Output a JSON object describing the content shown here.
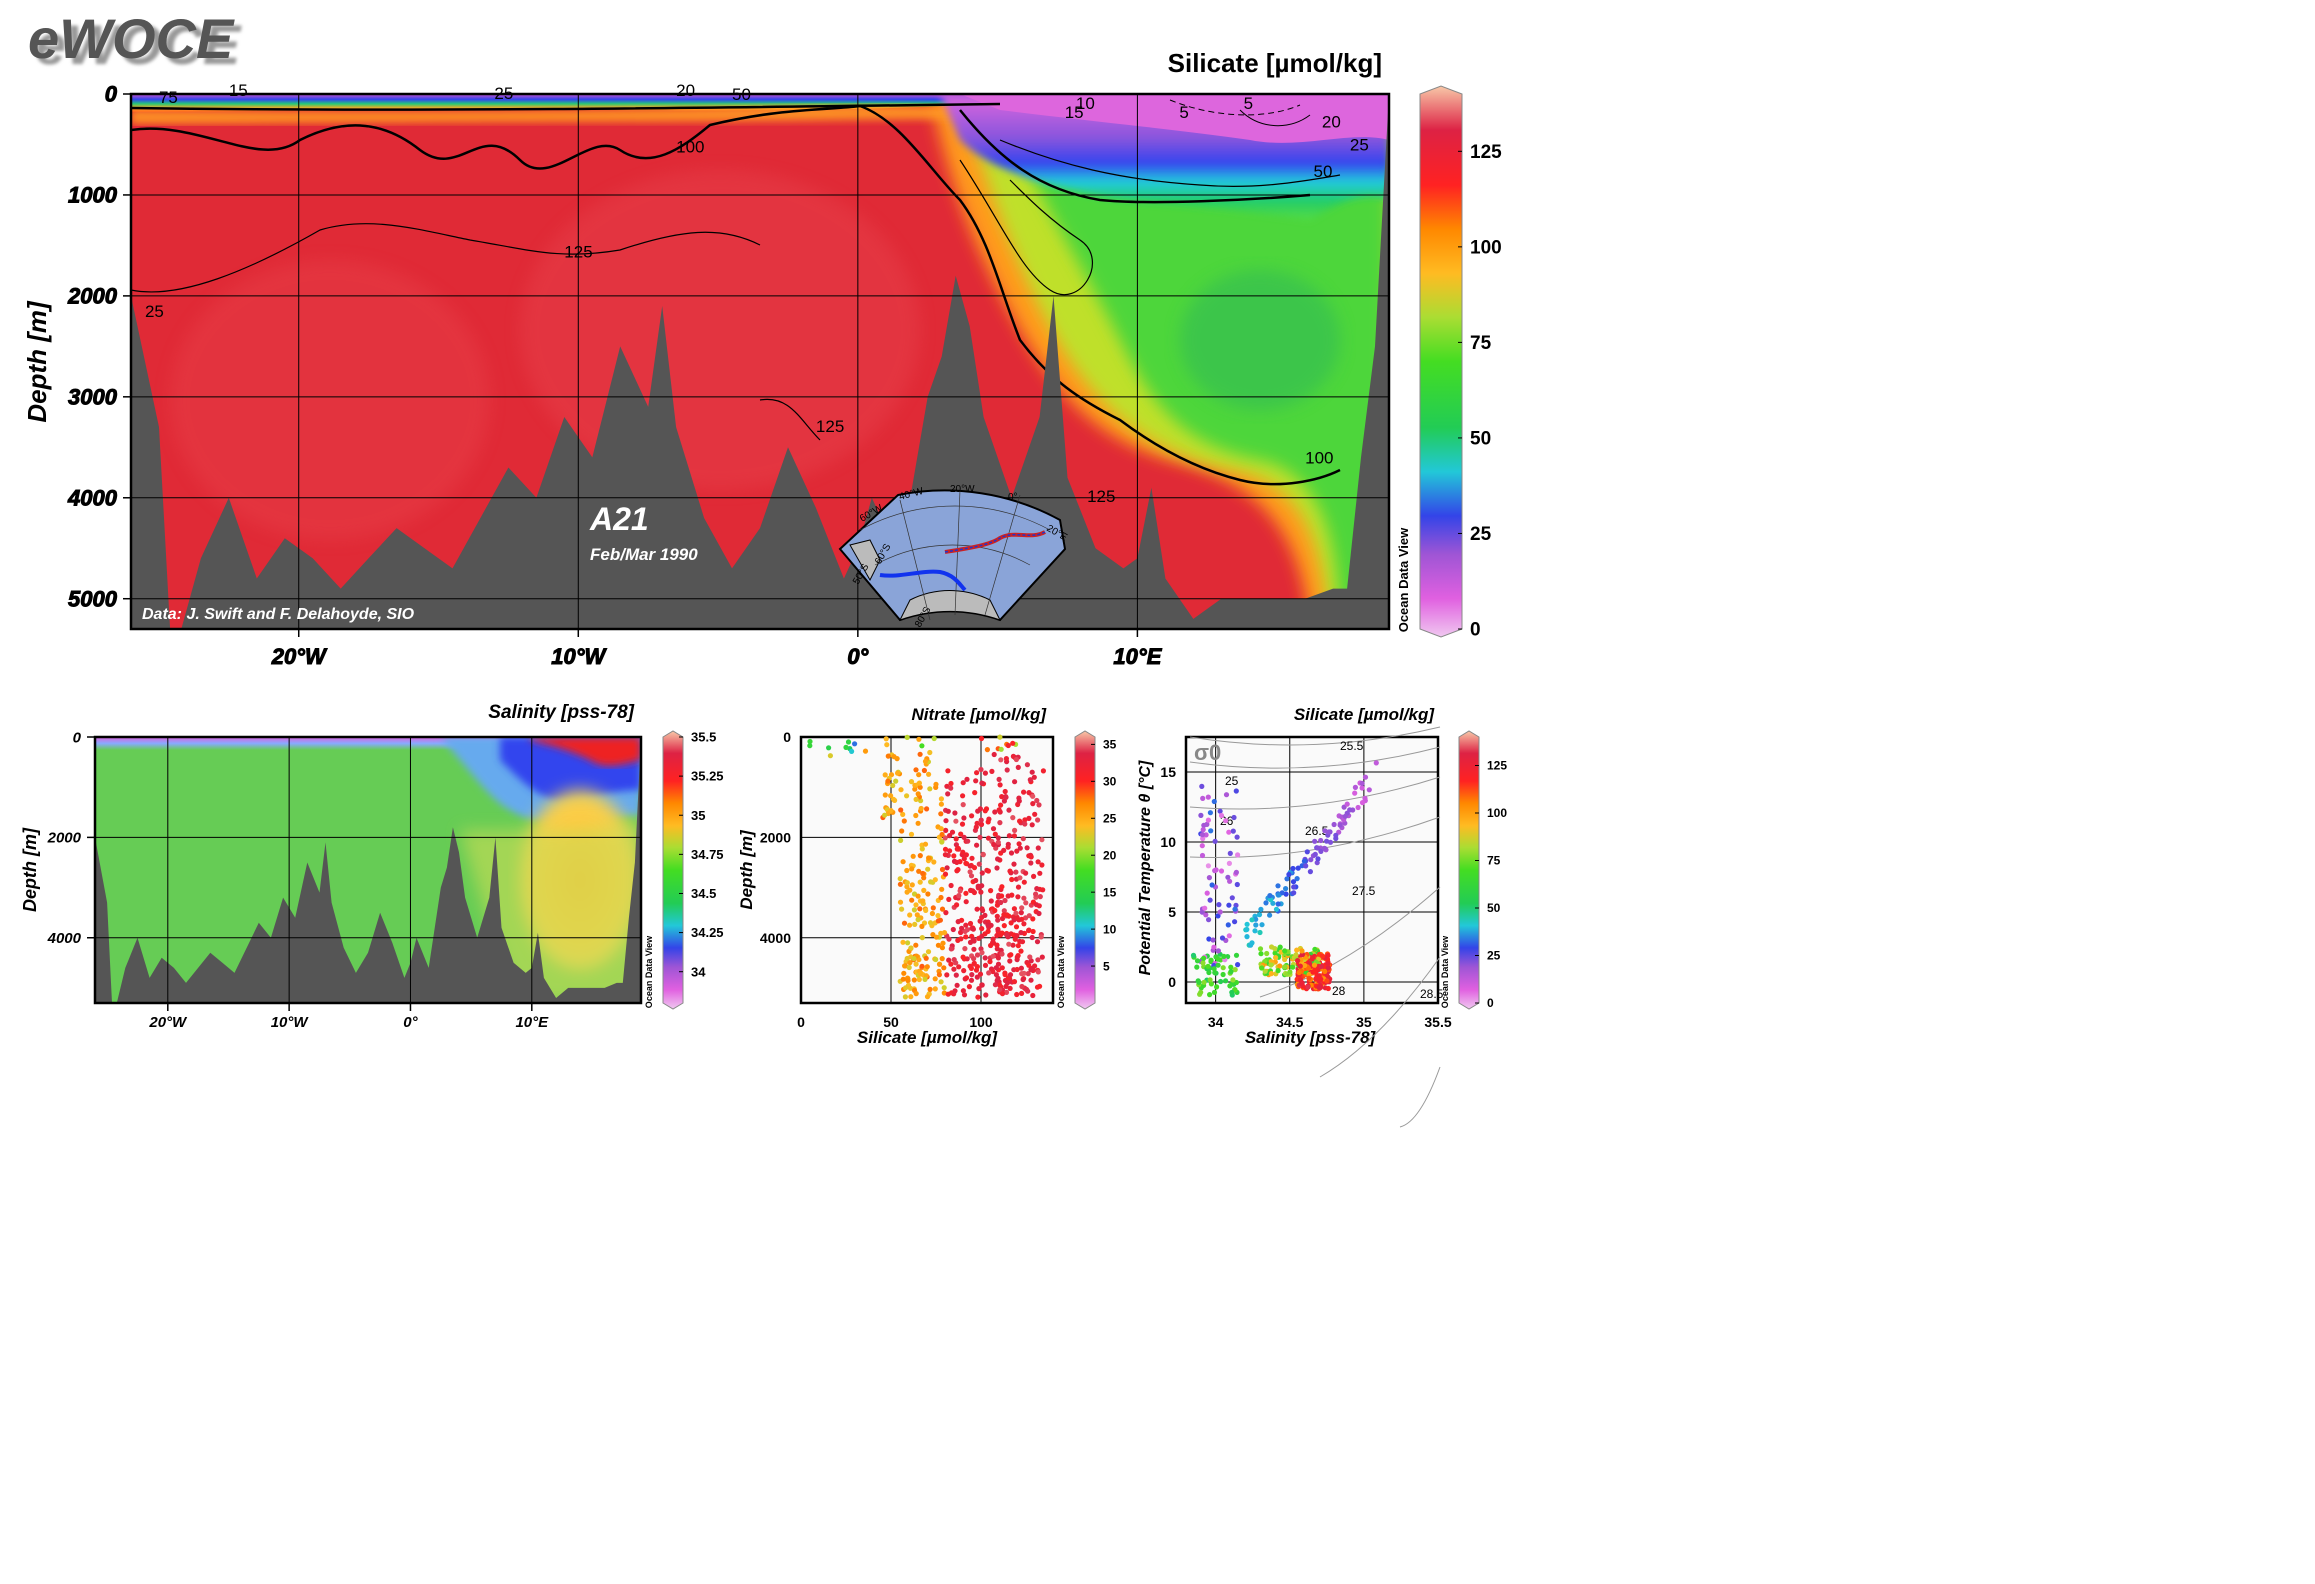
{
  "brand": {
    "logo": "eWOCE"
  },
  "chart_data": [
    {
      "type": "heatmap",
      "title": "Silicate [µmol/kg]",
      "ylabel": "Depth [m]",
      "xlabel": "",
      "xlim": [
        -26,
        19
      ],
      "ylim": [
        5300,
        0
      ],
      "x_ticks": [
        {
          "v": -20,
          "label": "20°W"
        },
        {
          "v": -10,
          "label": "10°W"
        },
        {
          "v": 0,
          "label": "0°"
        },
        {
          "v": 10,
          "label": "10°E"
        }
      ],
      "y_ticks": [
        0,
        1000,
        2000,
        3000,
        4000,
        5000
      ],
      "colorbar": {
        "min": 0,
        "max": 140,
        "ticks": [
          0,
          25,
          50,
          75,
          100,
          125
        ],
        "credit": "Ocean Data View"
      },
      "contour_labels": [
        {
          "x": -25,
          "y": 90,
          "text": "75"
        },
        {
          "x": -22.5,
          "y": 20,
          "text": "15"
        },
        {
          "x": -13,
          "y": 50,
          "text": "25"
        },
        {
          "x": -6.5,
          "y": 20,
          "text": "20"
        },
        {
          "x": -4.5,
          "y": 60,
          "text": "50"
        },
        {
          "x": -6.5,
          "y": 580,
          "text": "100"
        },
        {
          "x": -10.5,
          "y": 1620,
          "text": "125"
        },
        {
          "x": -1.5,
          "y": 3350,
          "text": "125"
        },
        {
          "x": -25.5,
          "y": 2210,
          "text": "25"
        },
        {
          "x": 7.8,
          "y": 150,
          "text": "10"
        },
        {
          "x": 7.4,
          "y": 240,
          "text": "15"
        },
        {
          "x": 11.5,
          "y": 240,
          "text": "5"
        },
        {
          "x": 13.8,
          "y": 150,
          "text": "5"
        },
        {
          "x": 16.6,
          "y": 330,
          "text": "20"
        },
        {
          "x": 17.6,
          "y": 560,
          "text": "25"
        },
        {
          "x": 16.3,
          "y": 820,
          "text": "50"
        },
        {
          "x": 16.0,
          "y": 3660,
          "text": "100"
        },
        {
          "x": 8.2,
          "y": 4040,
          "text": "125"
        }
      ],
      "annotations": {
        "section": "A21",
        "date": "Feb/Mar 1990",
        "credit": "Data: J. Swift and F. Delahoyde, SIO"
      },
      "inset_map": {
        "lon_labels": [
          "60°W",
          "40°W",
          "20°W",
          "0°",
          "20°E"
        ],
        "lat_labels": [
          "50°S",
          "60°S",
          "80°S"
        ]
      },
      "bathymetry": {
        "x": [
          -26,
          -25,
          -24.6,
          -24.2,
          -23.5,
          -22.5,
          -21.5,
          -20.5,
          -19.5,
          -18.5,
          -17.5,
          -16.5,
          -15.5,
          -14.5,
          -13.5,
          -12.5,
          -11.5,
          -10.5,
          -9.5,
          -8.5,
          -7.5,
          -7,
          -6.5,
          -5.5,
          -4.5,
          -3.5,
          -2.5,
          -1.5,
          -0.5,
          0,
          0.5,
          1.5,
          2.5,
          3,
          3.5,
          4,
          4.5,
          5.5,
          6.5,
          7,
          7.5,
          8.5,
          9.5,
          10,
          10.5,
          11,
          12,
          13,
          14,
          15,
          16,
          17,
          17.5,
          18,
          18.5,
          19
        ],
        "y": [
          2000,
          3300,
          5300,
          5300,
          4600,
          4000,
          4800,
          4400,
          4600,
          4900,
          4600,
          4300,
          4500,
          4700,
          4200,
          3700,
          4000,
          3200,
          3600,
          2500,
          3100,
          2100,
          3300,
          4200,
          4700,
          4300,
          3500,
          4100,
          4800,
          4500,
          4000,
          4600,
          3000,
          2600,
          1800,
          2300,
          3200,
          4000,
          3200,
          2000,
          3800,
          4500,
          4700,
          4600,
          3900,
          4800,
          5200,
          5000,
          5000,
          5000,
          5000,
          4900,
          4900,
          3600,
          2500,
          0
        ]
      }
    },
    {
      "type": "heatmap",
      "title": "Salinity [pss-78]",
      "ylabel": "Depth [m]",
      "xlabel": "",
      "xlim": [
        -26,
        19
      ],
      "ylim": [
        5300,
        0
      ],
      "x_ticks": [
        {
          "v": -20,
          "label": "20°W"
        },
        {
          "v": -10,
          "label": "10°W"
        },
        {
          "v": 0,
          "label": "0°"
        },
        {
          "v": 10,
          "label": "10°E"
        }
      ],
      "y_ticks": [
        0,
        2000,
        4000
      ],
      "colorbar": {
        "min": 33.8,
        "max": 35.5,
        "ticks": [
          34,
          34.25,
          34.5,
          34.75,
          35,
          35.25,
          35.5
        ],
        "credit": "Ocean Data View"
      }
    },
    {
      "type": "scatter",
      "title": "Nitrate [µmol/kg]",
      "xlabel": "Silicate [µmol/kg]",
      "ylabel": "Depth [m]",
      "xlim": [
        0,
        140
      ],
      "ylim": [
        5300,
        0
      ],
      "x_ticks": [
        0,
        50,
        100
      ],
      "y_ticks": [
        0,
        2000,
        4000
      ],
      "colorbar": {
        "min": 0,
        "max": 36,
        "ticks": [
          5,
          10,
          15,
          20,
          25,
          30,
          35
        ],
        "credit": "Ocean Data View"
      }
    },
    {
      "type": "scatter",
      "title": "Silicate [µmol/kg]",
      "xlabel": "Salinity [pss-78]",
      "ylabel": "Potential Temperature θ [°C]",
      "xlim": [
        33.8,
        35.5
      ],
      "ylim": [
        -1.5,
        17.5
      ],
      "x_ticks": [
        34,
        34.5,
        35,
        35.5
      ],
      "y_ticks": [
        0,
        5,
        10,
        15
      ],
      "sigma_label": "σ0",
      "density_labels": [
        "25",
        "25.5",
        "26",
        "26.5",
        "27.5",
        "28",
        "28.5"
      ],
      "colorbar": {
        "min": 0,
        "max": 140,
        "ticks": [
          0,
          25,
          50,
          75,
          100,
          125
        ],
        "credit": "Ocean Data View"
      }
    }
  ]
}
